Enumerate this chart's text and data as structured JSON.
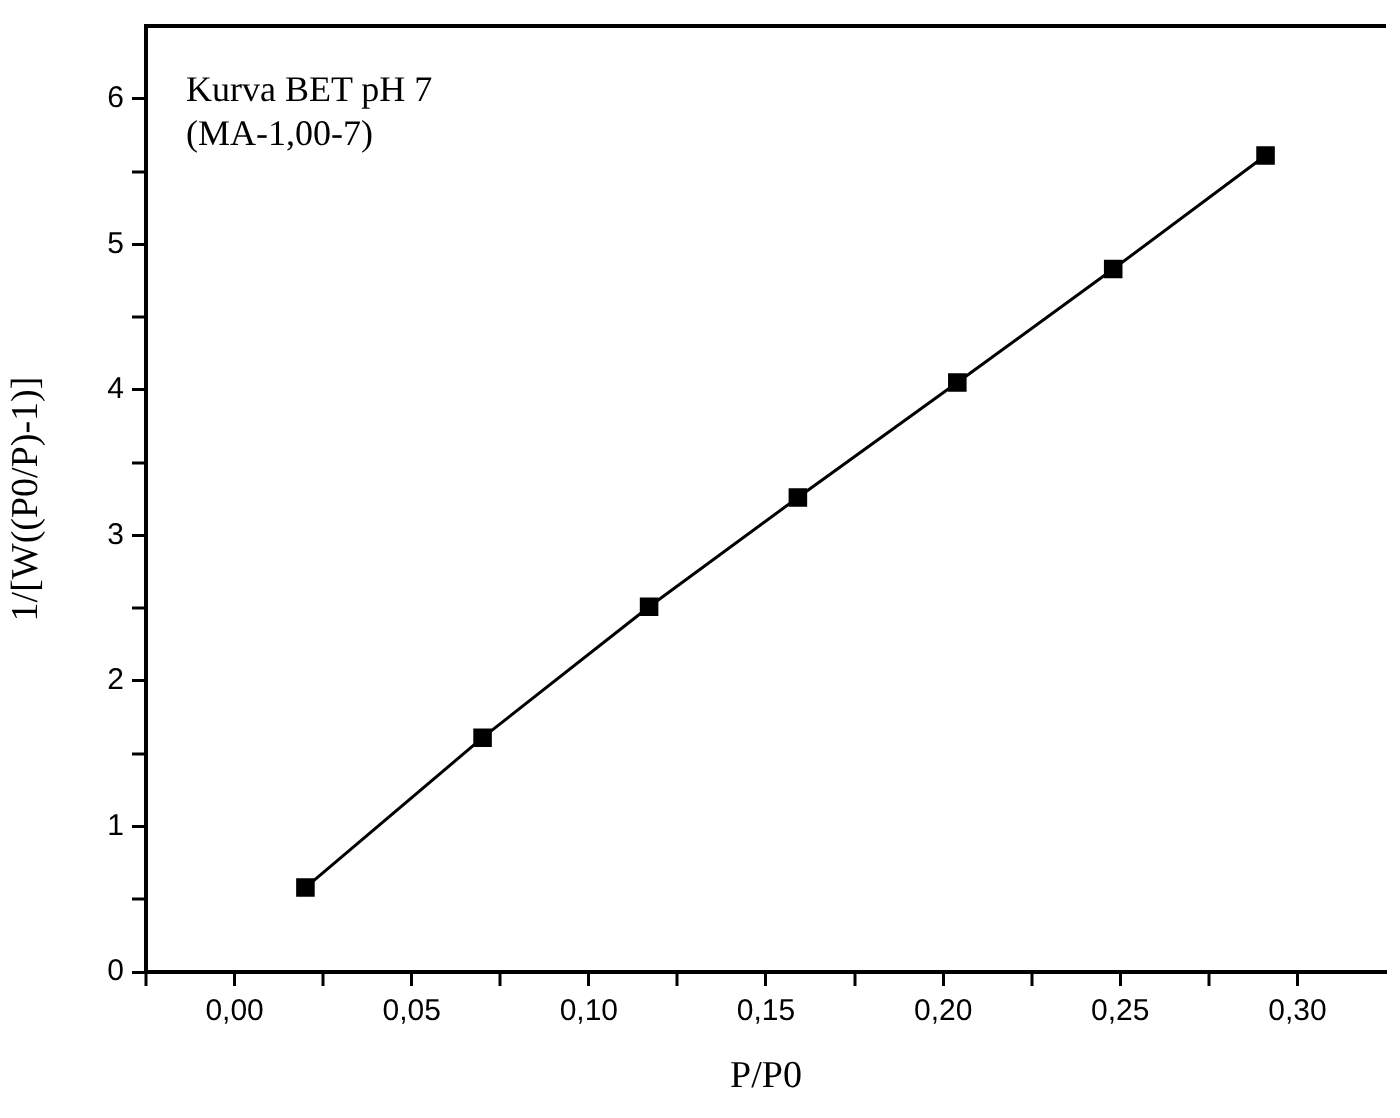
{
  "chart_data": {
    "type": "line",
    "xlabel": "P/P0",
    "ylabel": "1/[W((P0/P)-1)]",
    "annotations": [
      "Kurva BET pH 7",
      "(MA-1,00-7)"
    ],
    "x": [
      0.02,
      0.07,
      0.117,
      0.159,
      0.204,
      0.248,
      0.291
    ],
    "series": [
      {
        "color": "#000000",
        "values": [
          0.58,
          1.61,
          2.51,
          3.26,
          4.05,
          4.83,
          5.61
        ]
      }
    ],
    "xlim": [
      -0.025,
      0.325
    ],
    "xticks": [
      {
        "value": -0.025,
        "label": null
      },
      {
        "value": 0,
        "label": "0,00"
      },
      {
        "value": 0.025,
        "label": null
      },
      {
        "value": 0.05,
        "label": "0,05"
      },
      {
        "value": 0.075,
        "label": null
      },
      {
        "value": 0.1,
        "label": "0,10"
      },
      {
        "value": 0.125,
        "label": null
      },
      {
        "value": 0.15,
        "label": "0,15"
      },
      {
        "value": 0.175,
        "label": null
      },
      {
        "value": 0.2,
        "label": "0,20"
      },
      {
        "value": 0.225,
        "label": null
      },
      {
        "value": 0.25,
        "label": "0,25"
      },
      {
        "value": 0.275,
        "label": null
      },
      {
        "value": 0.3,
        "label": "0,30"
      }
    ],
    "ylim": [
      0,
      6.5
    ],
    "yticks": [
      0,
      {
        "value": 0.5,
        "label": null
      },
      1,
      {
        "value": 1.5,
        "label": null
      },
      2,
      {
        "value": 2.5,
        "label": null
      },
      3,
      {
        "value": 3.5,
        "label": null
      },
      4,
      {
        "value": 4.5,
        "label": null
      },
      5,
      {
        "value": 5.5,
        "label": null
      },
      6
    ],
    "grid": false,
    "legend": false,
    "marker": "square",
    "line_style": "solid"
  }
}
